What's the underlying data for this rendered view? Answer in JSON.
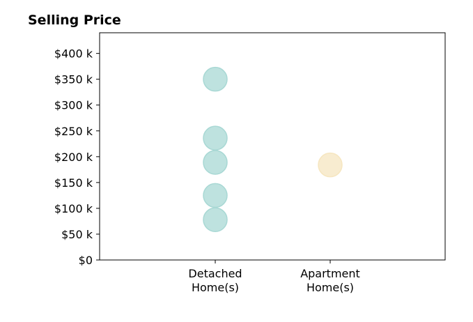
{
  "chart_data": {
    "type": "scatter",
    "title": "Selling Price",
    "xlabel": "",
    "ylabel": "",
    "categories": [
      "Detached\nHome(s)",
      "Apartment\nHome(s)"
    ],
    "y_ticks": [
      "$0",
      "$50 k",
      "$100 k",
      "$150 k",
      "$200 k",
      "$250 k",
      "$300 k",
      "$350 k",
      "$400 k"
    ],
    "ylim": [
      0,
      440000
    ],
    "grid": false,
    "series": [
      {
        "category_index": 0,
        "color": "#a8d8d4",
        "values": [
          350000,
          236000,
          189000,
          125000,
          78000
        ]
      },
      {
        "category_index": 1,
        "color": "#f6e6c0",
        "values": [
          184000
        ]
      }
    ]
  }
}
